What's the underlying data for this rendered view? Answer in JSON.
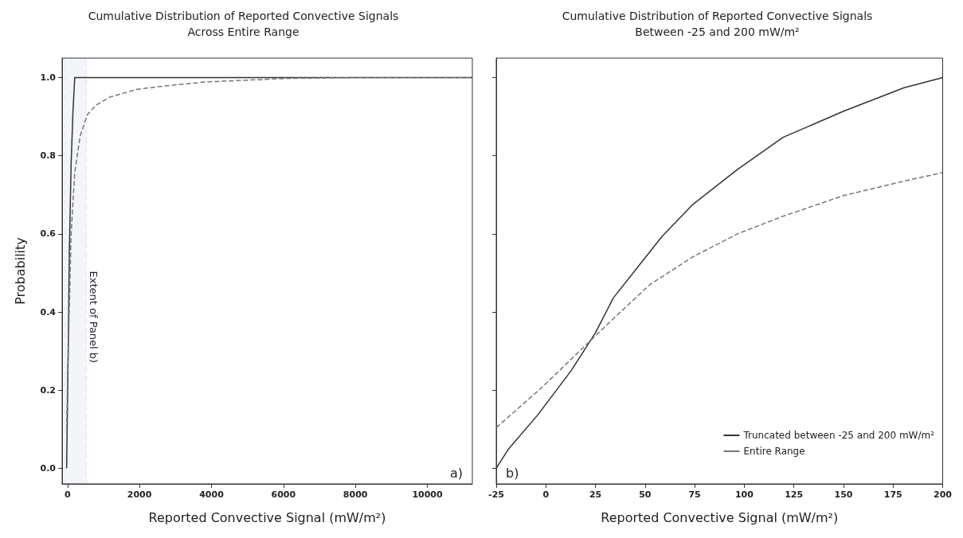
{
  "chart_data": [
    {
      "type": "line",
      "title": "Cumulative Distribution of Reported Convective Signals",
      "subtitle": "Across Entire Range",
      "xlabel": "Reported Convective Signal (mW/m²)",
      "ylabel": "Probability",
      "annotations": [
        "a)"
      ],
      "xlim": [
        -150,
        11250
      ],
      "xticks": [
        0,
        2000,
        4000,
        6000,
        8000,
        10000
      ],
      "ylim": [
        -0.04,
        1.05
      ],
      "yticks": [
        {
          "value": 0,
          "label": "0.0"
        },
        0.2,
        0.4,
        0.6,
        0.8,
        {
          "value": 1,
          "label": "1.0"
        }
      ],
      "grid": false,
      "marker": "none",
      "bands": [
        {
          "axis": "x",
          "from": -90,
          "to": 530,
          "label": "Extent of Panel b)",
          "color": "#2f5597"
        }
      ],
      "series": [
        {
          "color": "#333333",
          "line_style": "solid",
          "x": [
            -25,
            0,
            25,
            50,
            100,
            150,
            200,
            11250
          ],
          "values": [
            0,
            0.17,
            0.35,
            0.55,
            0.78,
            0.91,
            1.0,
            1.0
          ]
        },
        {
          "color": "#777777",
          "line_style": "dashed",
          "x": [
            -25,
            0,
            100,
            200,
            350,
            550,
            800,
            1170,
            1930,
            2540,
            3830,
            6115,
            8000,
            11250
          ],
          "values": [
            0.1,
            0.22,
            0.6,
            0.757,
            0.85,
            0.905,
            0.93,
            0.95,
            0.97,
            0.977,
            0.989,
            0.998,
            1.0,
            1.0
          ]
        }
      ]
    },
    {
      "type": "line",
      "title": "Cumulative Distribution of Reported Convective Signals",
      "subtitle": "Between -25 and 200 mW/m²",
      "xlabel": "Reported Convective Signal (mW/m²)",
      "annotations": [
        "b)"
      ],
      "xlim": [
        -25,
        200
      ],
      "xticks": [
        -25,
        0,
        25,
        50,
        75,
        100,
        125,
        150,
        175,
        200
      ],
      "ylim": [
        -0.04,
        1.05
      ],
      "yticks": [
        0,
        0.2,
        0.4,
        0.6,
        0.8,
        1
      ],
      "tick_labels": "x",
      "grid": false,
      "marker": "none",
      "legend": "bottom right",
      "series": [
        {
          "name": "Truncated between -25 and 200 mW/m²",
          "color": "#333333",
          "line_style": "solid",
          "x": [
            -25,
            -19,
            -4,
            0,
            12.8,
            25,
            34,
            48,
            58.5,
            74,
            96.6,
            119.5,
            150,
            180.5,
            200
          ],
          "values": [
            0,
            0.048,
            0.137,
            0.164,
            0.25,
            0.347,
            0.436,
            0.526,
            0.593,
            0.675,
            0.765,
            0.847,
            0.914,
            0.974,
            1.0
          ]
        },
        {
          "name": "Entire Range",
          "color": "#777777",
          "line_style": "dashed",
          "x": [
            -25,
            -2.4,
            17.4,
            35.7,
            52.4,
            74,
            96.6,
            119.5,
            150,
            180.5,
            200
          ],
          "values": [
            0.104,
            0.205,
            0.302,
            0.391,
            0.47,
            0.541,
            0.6,
            0.645,
            0.698,
            0.735,
            0.757
          ]
        }
      ]
    }
  ]
}
